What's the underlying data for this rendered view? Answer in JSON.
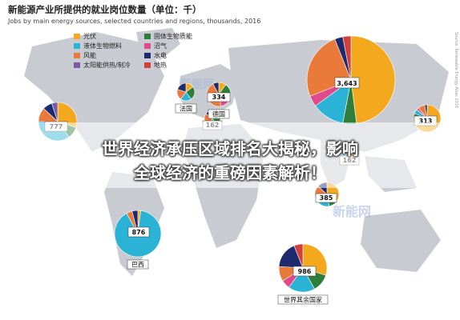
{
  "title": "新能源产业所提供的就业岗位数量（单位：千）",
  "subtitle": "Jobs by main energy sources, selected countries and regions, thousands, 2016",
  "credit": "Source: Renewable Energy Atlas 2016",
  "headline": {
    "line1": "世界经济承压区域排名大揭秘，影响",
    "line2": "全球经济的重磅因素解析！"
  },
  "watermark": "新能网",
  "colors": {
    "solar": "#f3a81e",
    "biofuel": "#2bb3d6",
    "wind": "#e97a3a",
    "solid_biomass": "#2e7d3a",
    "biogas": "#e04a8c",
    "hydro": "#1e2a6e",
    "geothermal_heat": "#7a5aa8",
    "geothermal": "#d2403a",
    "map_land": "#c8ccd2",
    "ocean": "#ffffff"
  },
  "chart_data": {
    "type": "pie",
    "title": "新能源产业所提供的就业岗位数量（单位：千）",
    "subtitle": "Jobs by main energy sources, selected countries and regions, thousands, 2016",
    "legend_position": "top-left",
    "legend": [
      {
        "key": "solar",
        "label": "光伏"
      },
      {
        "key": "solid_biomass",
        "label": "固体生物质能"
      },
      {
        "key": "biofuel",
        "label": "液体生物燃料"
      },
      {
        "key": "biogas",
        "label": "沼气"
      },
      {
        "key": "wind",
        "label": "风能"
      },
      {
        "key": "hydro",
        "label": "水电"
      },
      {
        "key": "geothermal_heat",
        "label": "太阳能供热/制冷"
      },
      {
        "key": "geothermal",
        "label": "地热"
      }
    ],
    "pies": [
      {
        "label": "",
        "total": "3,643",
        "shares": {
          "solar": 0.48,
          "biofuel": 0.12,
          "wind": 0.25,
          "solid_biomass": 0.05,
          "biogas": 0.04,
          "hydro": 0.03,
          "geothermal": 0.03
        }
      },
      {
        "label": "",
        "total": "313",
        "shares": {
          "solar": 0.75,
          "wind": 0.08,
          "biofuel": 0.05,
          "solid_biomass": 0.06,
          "biogas": 0.03,
          "hydro": 0.03
        }
      },
      {
        "label": "",
        "total": "162",
        "shares": {
          "solar": 0.55,
          "biofuel": 0.15,
          "wind": 0.15,
          "solid_biomass": 0.08,
          "hydro": 0.07
        }
      },
      {
        "label": "",
        "total": "385",
        "shares": {
          "solar": 0.35,
          "biofuel": 0.15,
          "wind": 0.15,
          "solid_biomass": 0.12,
          "hydro": 0.13,
          "biogas": 0.1
        }
      },
      {
        "label": "",
        "total": "162",
        "shares": {
          "solar": 0.25,
          "biofuel": 0.15,
          "wind": 0.3,
          "solid_biomass": 0.15,
          "hydro": 0.15
        }
      },
      {
        "label": "法国",
        "total": "",
        "shares": {
          "solar": 0.15,
          "biofuel": 0.2,
          "wind": 0.2,
          "solid_biomass": 0.25,
          "hydro": 0.2
        }
      },
      {
        "label": "德国",
        "total": "334",
        "shares": {
          "solar": 0.1,
          "biofuel": 0.1,
          "wind": 0.45,
          "solid_biomass": 0.15,
          "biogas": 0.12,
          "hydro": 0.08
        }
      },
      {
        "label": "",
        "total": "777",
        "shares": {
          "solar": 0.3,
          "biofuel": 0.35,
          "wind": 0.12,
          "solid_biomass": 0.1,
          "hydro": 0.08,
          "geothermal_heat": 0.05
        }
      },
      {
        "label": "巴西",
        "total": "876",
        "shares": {
          "biofuel": 0.9,
          "solar": 0.02,
          "wind": 0.04,
          "hydro": 0.04
        }
      },
      {
        "label": "世界其余国家",
        "total": "986",
        "shares": {
          "solar": 0.3,
          "biofuel": 0.18,
          "wind": 0.1,
          "solid_biomass": 0.12,
          "hydro": 0.18,
          "biogas": 0.06,
          "geothermal": 0.06
        }
      }
    ]
  }
}
